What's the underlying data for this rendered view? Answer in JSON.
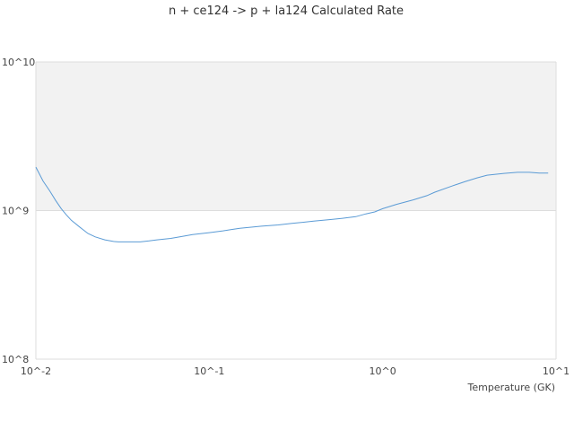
{
  "chart_data": {
    "type": "line",
    "title": "n + ce124 -> p + la124 Calculated Rate",
    "xlabel": "Temperature (GK)",
    "ylabel": "",
    "x_scale": "log",
    "y_scale": "log",
    "xlim": [
      0.01,
      10
    ],
    "ylim": [
      100000000,
      10000000000
    ],
    "x_tick_labels": [
      "10^-2",
      "10^-1",
      "10^0",
      "10^1"
    ],
    "y_tick_labels": [
      "10^8",
      "10^9",
      "10^10"
    ],
    "grid": true,
    "legend": "none",
    "colors": {
      "line": "#5b9bd5",
      "band": "#f2f2f2",
      "grid": "#dddddd"
    },
    "series": [
      {
        "x": [
          0.01,
          0.011,
          0.012,
          0.013,
          0.014,
          0.015,
          0.016,
          0.018,
          0.02,
          0.022,
          0.025,
          0.028,
          0.03,
          0.035,
          0.04,
          0.045,
          0.05,
          0.06,
          0.07,
          0.08,
          0.09,
          0.1,
          0.12,
          0.15,
          0.18,
          0.2,
          0.25,
          0.3,
          0.35,
          0.4,
          0.5,
          0.6,
          0.7,
          0.8,
          0.9,
          1.0,
          1.2,
          1.5,
          1.8,
          2.0,
          2.5,
          3.0,
          3.5,
          4.0,
          5.0,
          6.0,
          7.0,
          8.0,
          9.0
        ],
        "y": [
          1960000000,
          1580000000,
          1360000000,
          1170000000,
          1030000000,
          935000000,
          860000000,
          770000000,
          700000000,
          665000000,
          635000000,
          620000000,
          615000000,
          615000000,
          615000000,
          625000000,
          635000000,
          650000000,
          670000000,
          690000000,
          700000000,
          710000000,
          730000000,
          760000000,
          775000000,
          785000000,
          800000000,
          820000000,
          835000000,
          850000000,
          870000000,
          890000000,
          910000000,
          950000000,
          980000000,
          1030000000,
          1100000000,
          1180000000,
          1260000000,
          1330000000,
          1460000000,
          1570000000,
          1660000000,
          1730000000,
          1780000000,
          1810000000,
          1810000000,
          1790000000,
          1790000000
        ]
      }
    ]
  }
}
